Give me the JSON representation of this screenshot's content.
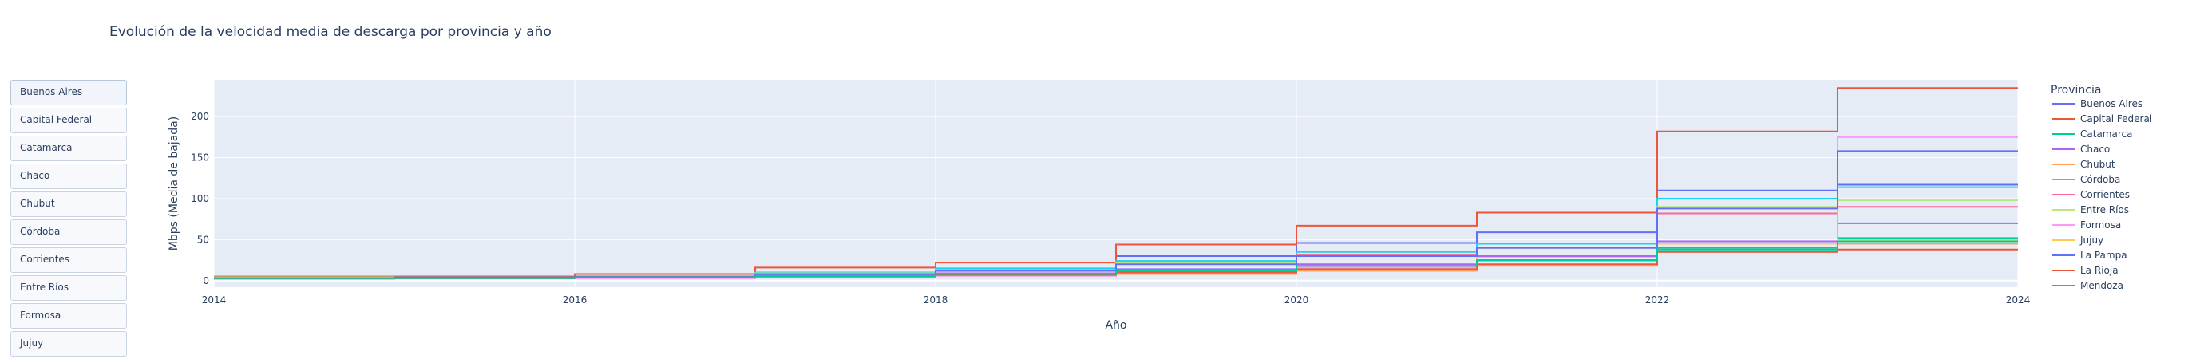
{
  "chart_data": {
    "type": "line",
    "title": "Evolución de la velocidad media de descarga por provincia y año",
    "xlabel": "Año",
    "ylabel": "Mbps (Media de bajada)",
    "xlim": [
      2014,
      2024
    ],
    "ylim": [
      -8,
      245
    ],
    "x_ticks": [
      "2014",
      "2016",
      "2018",
      "2020",
      "2022",
      "2024"
    ],
    "y_ticks": [
      "0",
      "50",
      "100",
      "150",
      "200"
    ],
    "legend_title": "Provincia",
    "legend_position": "right",
    "grid": true,
    "line_shape": "step",
    "x": [
      2014,
      2015,
      2016,
      2017,
      2018,
      2019,
      2020,
      2021,
      2022,
      2023
    ],
    "series": [
      {
        "name": "Buenos Aires",
        "color": "#636efa",
        "values": [
          4,
          5,
          5,
          9,
          14,
          30,
          46,
          59,
          110,
          117
        ]
      },
      {
        "name": "Capital Federal",
        "color": "#EF553B",
        "values": [
          5,
          5,
          8,
          16,
          22,
          44,
          67,
          83,
          182,
          235
        ]
      },
      {
        "name": "Catamarca",
        "color": "#00cc96",
        "values": [
          3,
          4,
          4,
          6,
          8,
          12,
          17,
          25,
          38,
          52
        ]
      },
      {
        "name": "Chaco",
        "color": "#ab63fa",
        "values": [
          3,
          4,
          4,
          6,
          9,
          14,
          20,
          30,
          48,
          70
        ]
      },
      {
        "name": "Chubut",
        "color": "#FFA15A",
        "values": [
          3,
          3,
          3,
          4,
          6,
          8,
          12,
          18,
          35,
          45
        ]
      },
      {
        "name": "Córdoba",
        "color": "#19d3f3",
        "values": [
          4,
          4,
          5,
          10,
          15,
          24,
          35,
          45,
          100,
          114
        ]
      },
      {
        "name": "Corrientes",
        "color": "#FF6692",
        "values": [
          3,
          4,
          4,
          8,
          12,
          22,
          32,
          40,
          82,
          90
        ]
      },
      {
        "name": "Entre Ríos",
        "color": "#B6E880",
        "values": [
          4,
          4,
          5,
          9,
          13,
          22,
          30,
          40,
          90,
          98
        ]
      },
      {
        "name": "Formosa",
        "color": "#FF97FF",
        "values": [
          2,
          3,
          3,
          4,
          6,
          10,
          16,
          24,
          40,
          175
        ]
      },
      {
        "name": "Jujuy",
        "color": "#FECB52",
        "values": [
          3,
          3,
          4,
          5,
          8,
          12,
          18,
          28,
          45,
          50
        ]
      },
      {
        "name": "La Pampa",
        "color": "#636efa",
        "values": [
          3,
          4,
          5,
          8,
          12,
          20,
          30,
          40,
          88,
          158
        ]
      },
      {
        "name": "La Rioja",
        "color": "#EF553B",
        "values": [
          3,
          3,
          4,
          5,
          7,
          10,
          14,
          20,
          35,
          38
        ]
      },
      {
        "name": "Mendoza",
        "color": "#00cc96",
        "values": [
          3,
          3,
          4,
          5,
          8,
          12,
          18,
          25,
          40,
          48
        ]
      }
    ]
  },
  "buttons": [
    "Buenos Aires",
    "Capital Federal",
    "Catamarca",
    "Chaco",
    "Chubut",
    "Córdoba",
    "Corrientes",
    "Entre Ríos",
    "Formosa",
    "Jujuy"
  ]
}
